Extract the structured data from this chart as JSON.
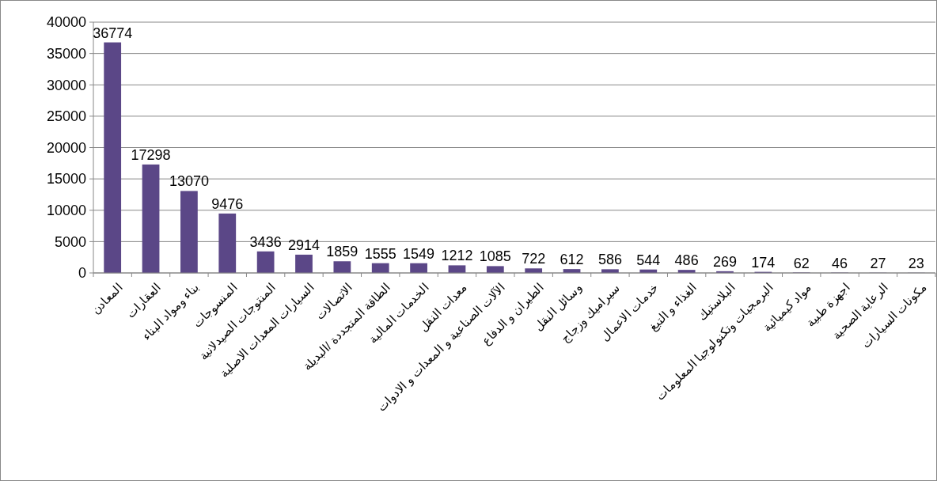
{
  "chart_data": {
    "type": "bar",
    "categories": [
      "المعادن",
      "العقارات",
      "بناء ومواد البناء",
      "المنسوجات",
      "المنتوجات الصيدلانية",
      "السيارات المعدات الاصلية",
      "الاتصالات",
      "الطاقة المتجددة /البديلة",
      "الخدمات المالية",
      "معدات النقل",
      "الآلات الصناعية و المعدات و الادوات",
      "الطيران و الدفاع",
      "وسائل النقل",
      "سيراميك وزجاج",
      "خدمات الاعمال",
      "الغذاء و التبغ",
      "البلاستيك",
      "البرمجيات وتكنولوجيا المعلومات",
      "مواد كيميائية",
      "اجهزة طبية",
      "الرعاية الصحية",
      "مكونات السيارات"
    ],
    "values": [
      36774,
      17298,
      13070,
      9476,
      3436,
      2914,
      1859,
      1555,
      1549,
      1212,
      1085,
      722,
      612,
      586,
      544,
      486,
      269,
      174,
      62,
      46,
      27,
      23
    ],
    "color": "#5b4787",
    "ylim": [
      0,
      40000
    ],
    "yticks": [
      0,
      5000,
      10000,
      15000,
      20000,
      25000,
      30000,
      35000,
      40000
    ],
    "grid": "y",
    "data_labels": true
  }
}
